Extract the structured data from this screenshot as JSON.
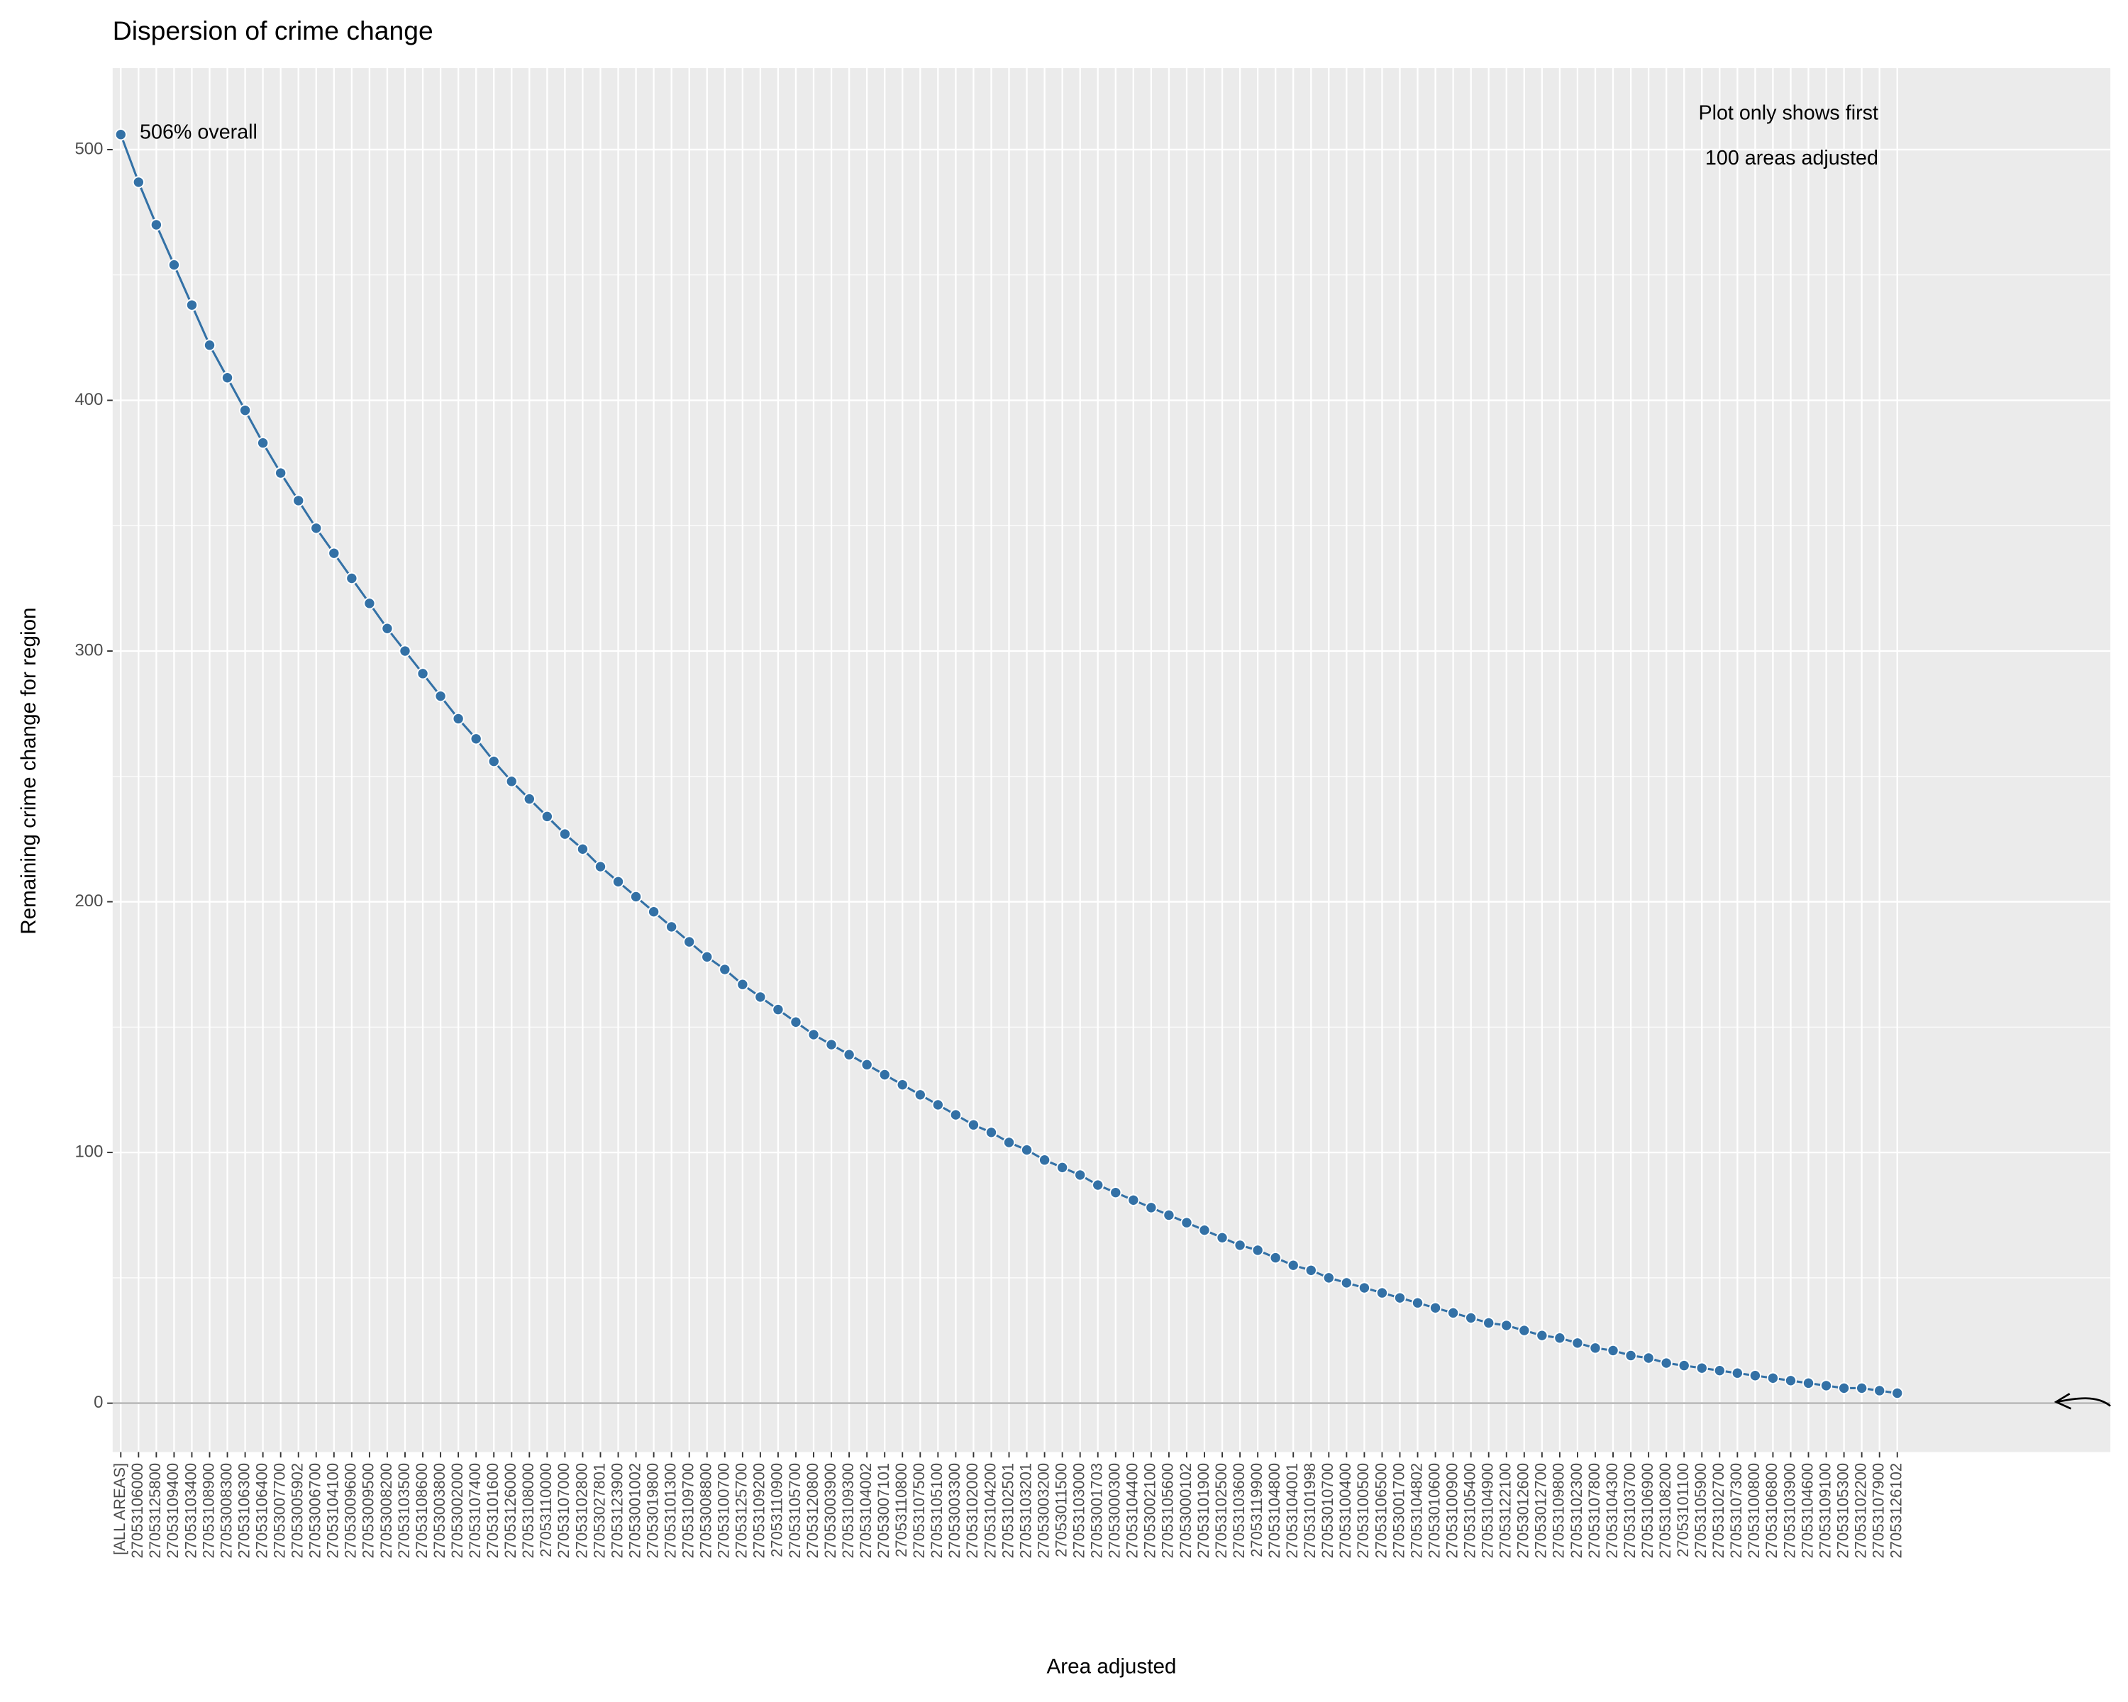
{
  "chart_data": {
    "type": "line",
    "title": "Dispersion of crime change",
    "xlabel": "Area adjusted",
    "ylabel": "Remaining crime change for region",
    "annotations": [
      "506% overall",
      "Plot only shows first",
      "100 areas adjusted"
    ],
    "categories": [
      "[ALL AREAS]",
      "27053106000",
      "27053125800",
      "27053109400",
      "27053103400",
      "27053108900",
      "27053008300",
      "27053106300",
      "27053106400",
      "27053007700",
      "27053005902",
      "27053006700",
      "27053104100",
      "27053009600",
      "27053009500",
      "27053008200",
      "27053103500",
      "27053108600",
      "27053003800",
      "27053002000",
      "27053107400",
      "27053101600",
      "27053126000",
      "27053108000",
      "27053110000",
      "27053107000",
      "27053102800",
      "27053027801",
      "27053123900",
      "27053001002",
      "27053019800",
      "27053101300",
      "27053109700",
      "27053008800",
      "27053100700",
      "27053125700",
      "27053109200",
      "27053110900",
      "27053105700",
      "27053120800",
      "27053003900",
      "27053109300",
      "27053104002",
      "27053007101",
      "27053110800",
      "27053107500",
      "27053105100",
      "27053003300",
      "27053102000",
      "27053104200",
      "27053102501",
      "27053103201",
      "27053003200",
      "27053011500",
      "27053103000",
      "27053001703",
      "27053000300",
      "27053104400",
      "27053002100",
      "27053105600",
      "27053000102",
      "27053101900",
      "27053102500",
      "27053103600",
      "27053119900",
      "27053104800",
      "27053104001",
      "27053101998",
      "27053010700",
      "27053100400",
      "27053100500",
      "27053106500",
      "27053001700",
      "27053104802",
      "27053010600",
      "27053100900",
      "27053105400",
      "27053104900",
      "27053122100",
      "27053012600",
      "27053012700",
      "27053109800",
      "27053102300",
      "27053107800",
      "27053104300",
      "27053103700",
      "27053106900",
      "27053108200",
      "27053101100",
      "27053105900",
      "27053102700",
      "27053107300",
      "27053100800",
      "27053106800",
      "27053103900",
      "27053104600",
      "27053109100",
      "27053105300",
      "27053102200",
      "27053107900",
      "27053126102"
    ],
    "series": [
      {
        "name": "Remaining crime change",
        "color": "#3371a6",
        "values": [
          506,
          487,
          470,
          454,
          438,
          422,
          409,
          396,
          383,
          371,
          360,
          349,
          339,
          329,
          319,
          309,
          300,
          291,
          282,
          273,
          265,
          256,
          248,
          241,
          234,
          227,
          221,
          214,
          208,
          202,
          196,
          190,
          184,
          178,
          173,
          167,
          162,
          157,
          152,
          147,
          143,
          139,
          135,
          131,
          127,
          123,
          119,
          115,
          111,
          108,
          104,
          101,
          97,
          94,
          91,
          87,
          84,
          81,
          78,
          75,
          72,
          69,
          66,
          63,
          61,
          58,
          55,
          53,
          50,
          48,
          46,
          44,
          42,
          40,
          38,
          36,
          34,
          32,
          31,
          29,
          27,
          26,
          24,
          22,
          21,
          19,
          18,
          16,
          15,
          14,
          13,
          12,
          11,
          10,
          9,
          8,
          7,
          6,
          6,
          5,
          4
        ]
      }
    ],
    "ylim": [
      -19.5,
      532.5
    ],
    "yticks": [
      0,
      100,
      200,
      300,
      400,
      500
    ],
    "grid": true
  }
}
